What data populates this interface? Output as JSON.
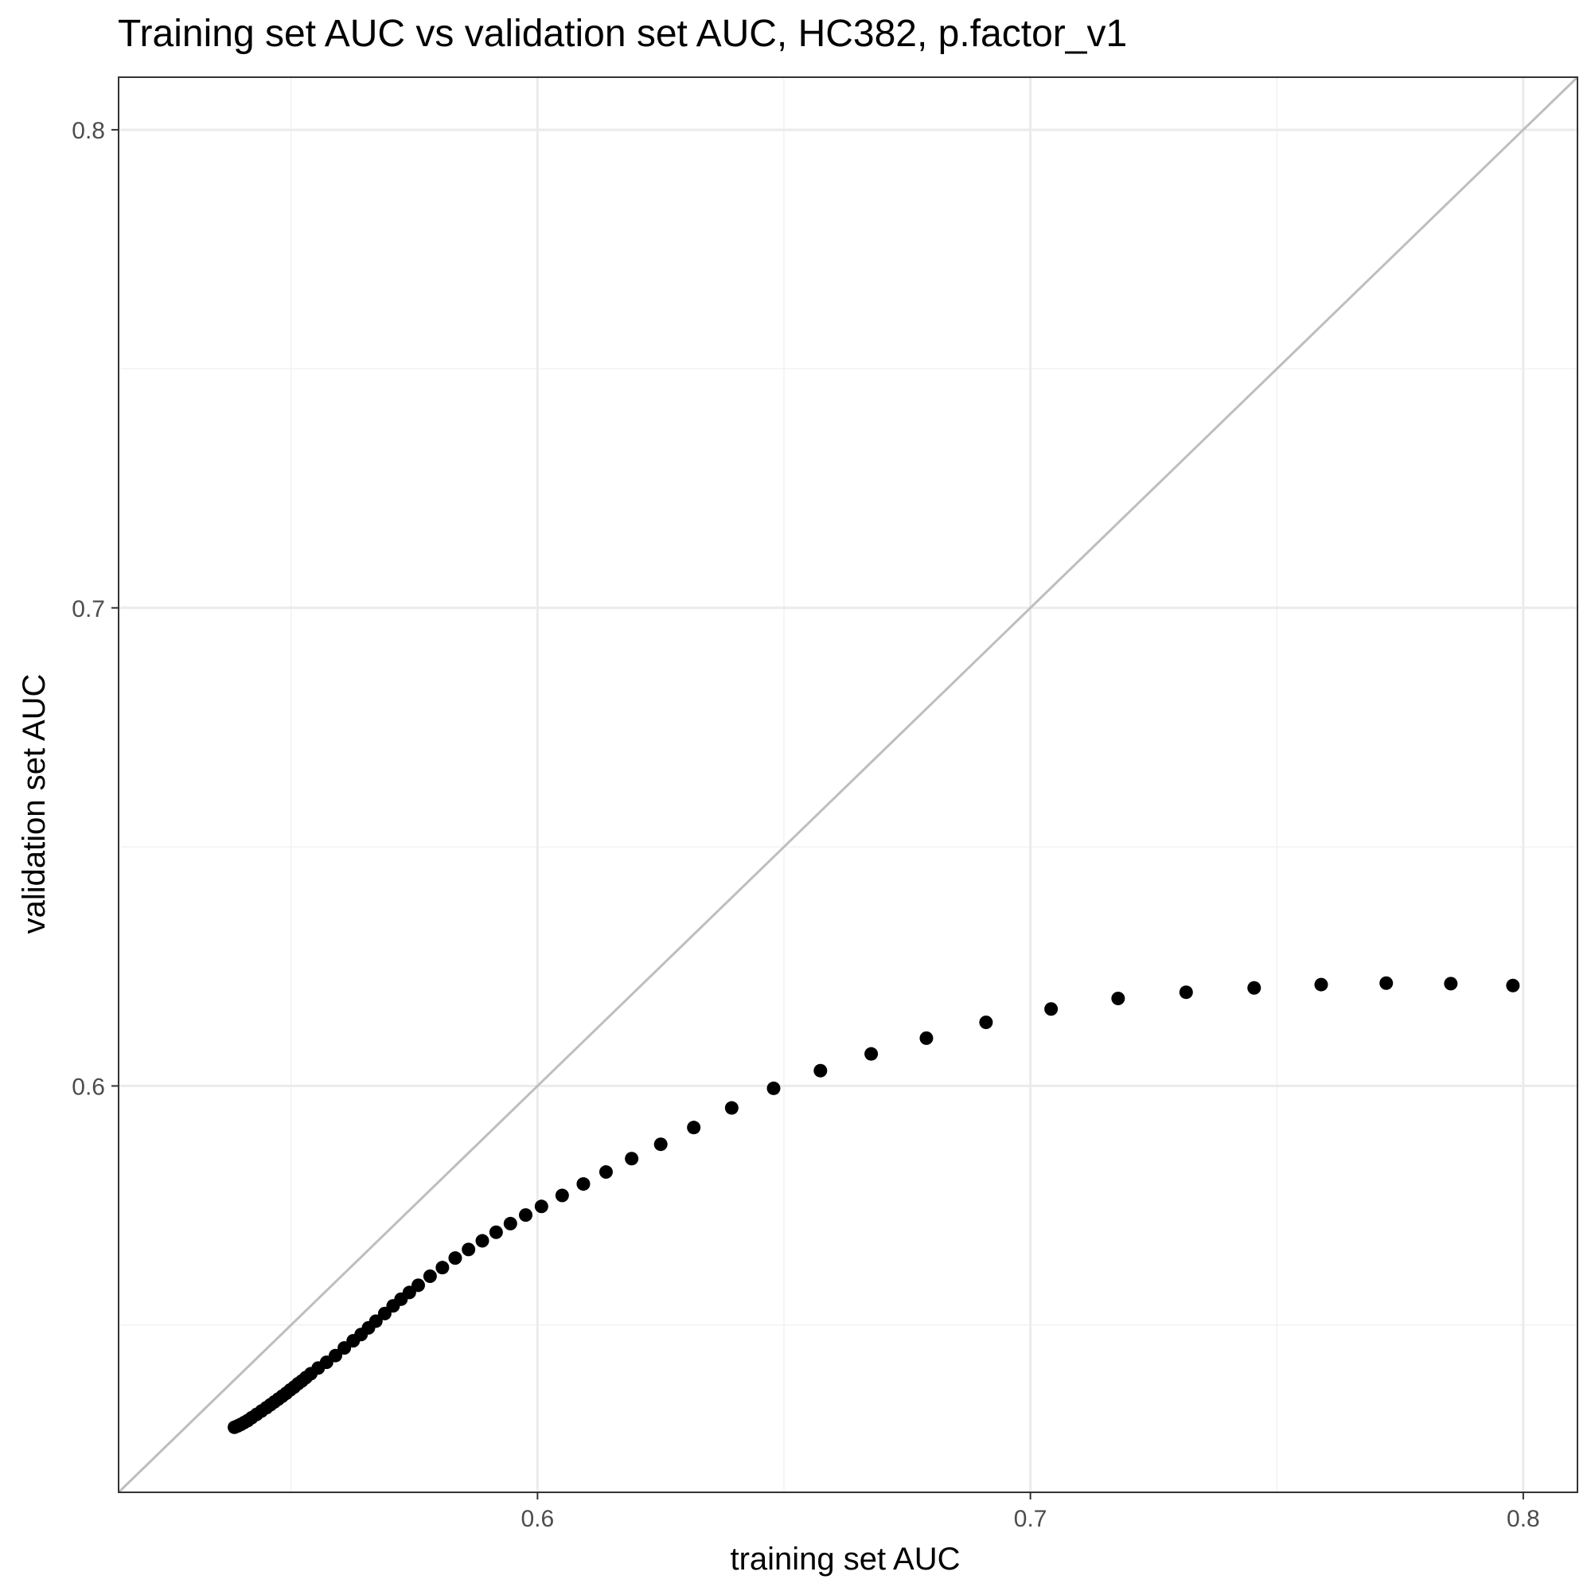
{
  "colors": {
    "background": "#ffffff",
    "panel_border": "#333333",
    "grid_major": "#ebebeb",
    "grid_minor": "#f2f2f2",
    "identity_line": "#bebebe",
    "points": "#000000",
    "tick_label": "#4d4d4d",
    "text": "#000000"
  },
  "chart_data": {
    "type": "scatter",
    "title": "Training set AUC vs validation set AUC, HC382, p.factor_v1",
    "xlabel": "training set AUC",
    "ylabel": "validation set AUC",
    "xlim": [
      0.515,
      0.811
    ],
    "ylim": [
      0.515,
      0.811
    ],
    "xticks": [
      0.6,
      0.7,
      0.8
    ],
    "yticks": [
      0.6,
      0.7,
      0.8
    ],
    "xtick_labels": [
      "0.6",
      "0.7",
      "0.8"
    ],
    "ytick_labels": [
      "0.6",
      "0.7",
      "0.8"
    ],
    "grid": true,
    "reference_line": "y = x",
    "series": [
      {
        "points": [
          [
            0.5385,
            0.5286
          ],
          [
            0.5392,
            0.5289
          ],
          [
            0.5398,
            0.5292
          ],
          [
            0.5405,
            0.5296
          ],
          [
            0.5412,
            0.53
          ],
          [
            0.542,
            0.5306
          ],
          [
            0.543,
            0.5313
          ],
          [
            0.544,
            0.532
          ],
          [
            0.545,
            0.5327
          ],
          [
            0.5458,
            0.5333
          ],
          [
            0.5466,
            0.5339
          ],
          [
            0.5474,
            0.5345
          ],
          [
            0.5482,
            0.5351
          ],
          [
            0.549,
            0.5357
          ],
          [
            0.5498,
            0.5364
          ],
          [
            0.5506,
            0.537
          ],
          [
            0.5514,
            0.5377
          ],
          [
            0.5522,
            0.5383
          ],
          [
            0.553,
            0.539
          ],
          [
            0.554,
            0.5398
          ],
          [
            0.5555,
            0.541
          ],
          [
            0.5572,
            0.5422
          ],
          [
            0.559,
            0.5436
          ],
          [
            0.5608,
            0.5452
          ],
          [
            0.5626,
            0.5467
          ],
          [
            0.5642,
            0.548
          ],
          [
            0.5657,
            0.5494
          ],
          [
            0.5672,
            0.5508
          ],
          [
            0.569,
            0.5524
          ],
          [
            0.5707,
            0.554
          ],
          [
            0.5723,
            0.5554
          ],
          [
            0.574,
            0.5568
          ],
          [
            0.5758,
            0.5583
          ],
          [
            0.5782,
            0.5602
          ],
          [
            0.5807,
            0.562
          ],
          [
            0.5833,
            0.564
          ],
          [
            0.586,
            0.5658
          ],
          [
            0.5888,
            0.5676
          ],
          [
            0.5916,
            0.5694
          ],
          [
            0.5945,
            0.5712
          ],
          [
            0.5976,
            0.573
          ],
          [
            0.6008,
            0.5748
          ],
          [
            0.605,
            0.5771
          ],
          [
            0.6093,
            0.5795
          ],
          [
            0.6139,
            0.582
          ],
          [
            0.6191,
            0.5848
          ],
          [
            0.625,
            0.5878
          ],
          [
            0.6317,
            0.5913
          ],
          [
            0.6394,
            0.5954
          ],
          [
            0.6479,
            0.5995
          ],
          [
            0.6574,
            0.6032
          ],
          [
            0.6677,
            0.6067
          ],
          [
            0.6789,
            0.61
          ],
          [
            0.691,
            0.6133
          ],
          [
            0.7042,
            0.6161
          ],
          [
            0.7178,
            0.6183
          ],
          [
            0.7316,
            0.6196
          ],
          [
            0.7454,
            0.6205
          ],
          [
            0.759,
            0.6212
          ],
          [
            0.7722,
            0.6215
          ],
          [
            0.7853,
            0.6214
          ],
          [
            0.7979,
            0.621
          ]
        ]
      }
    ]
  }
}
